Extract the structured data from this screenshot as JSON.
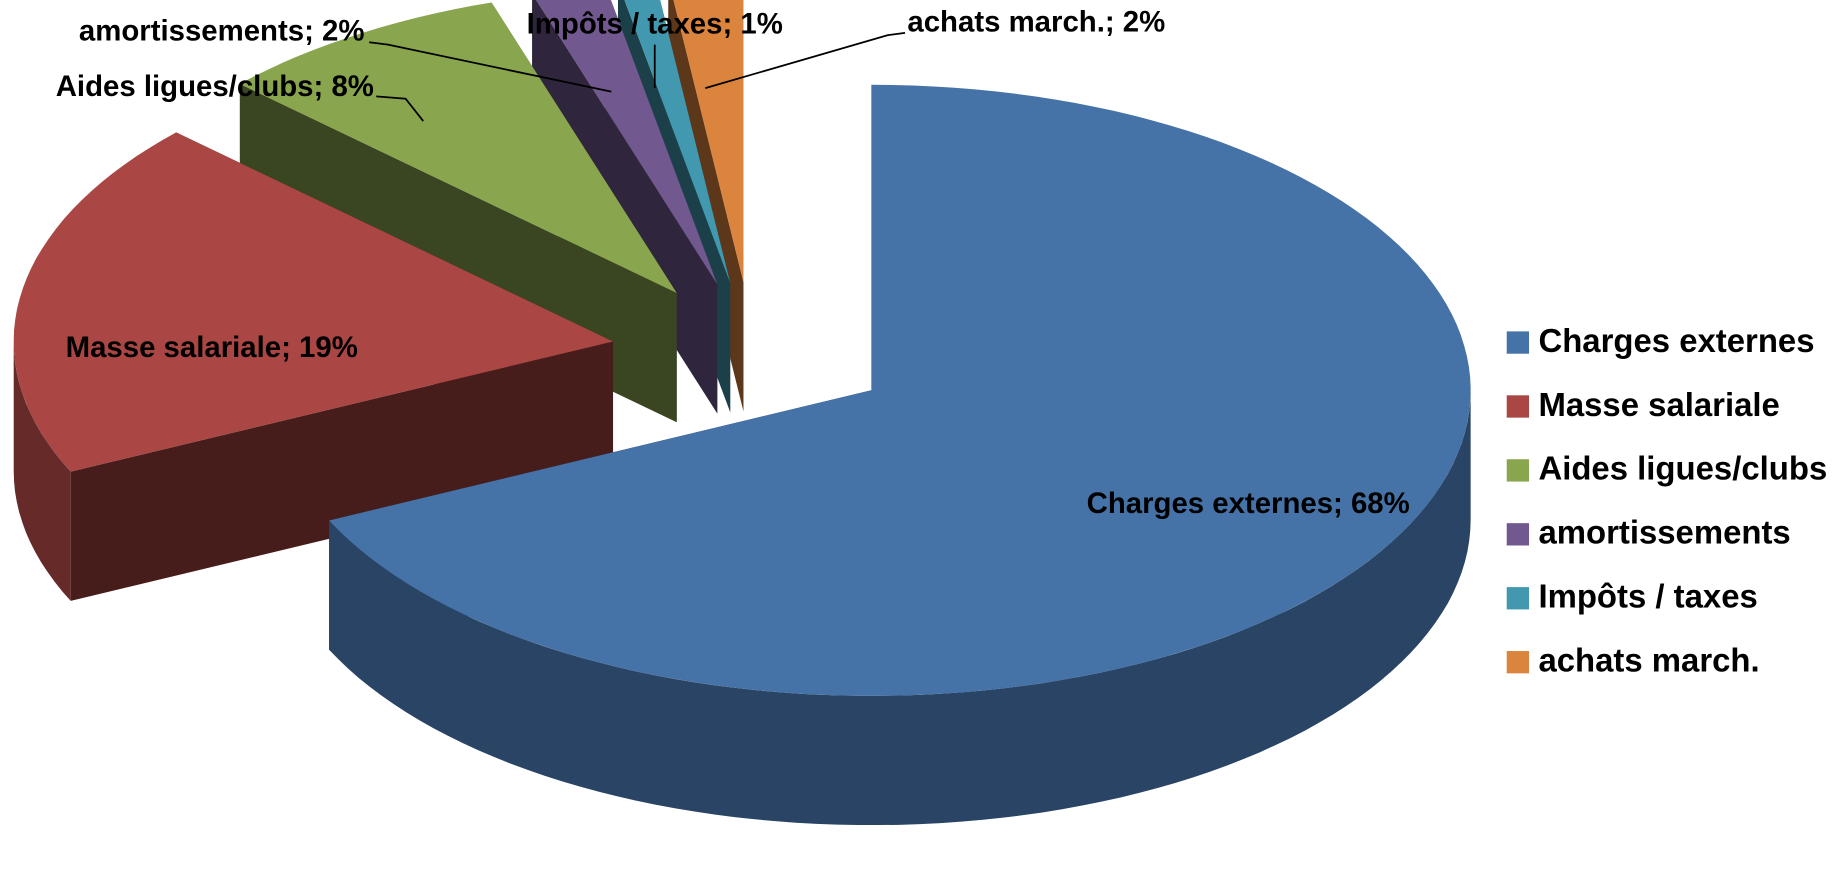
{
  "chart_data": {
    "type": "pie",
    "categories": [
      "Charges externes",
      "Masse salariale",
      "Aides ligues/clubs",
      "amortissements",
      "Impôts / taxes",
      "achats march."
    ],
    "values": [
      68,
      19,
      8,
      2,
      1,
      2
    ],
    "value_labels": [
      "Charges externes; 68%",
      "Masse salariale; 19%",
      "Aides ligues/clubs; 8%",
      "amortissements; 2%",
      "Impôts / taxes; 1%",
      "achats march.; 2%"
    ],
    "colors": [
      "#4572a7",
      "#aa4643",
      "#89a54e",
      "#71588f",
      "#4198af",
      "#db843d"
    ],
    "legend": "right"
  }
}
